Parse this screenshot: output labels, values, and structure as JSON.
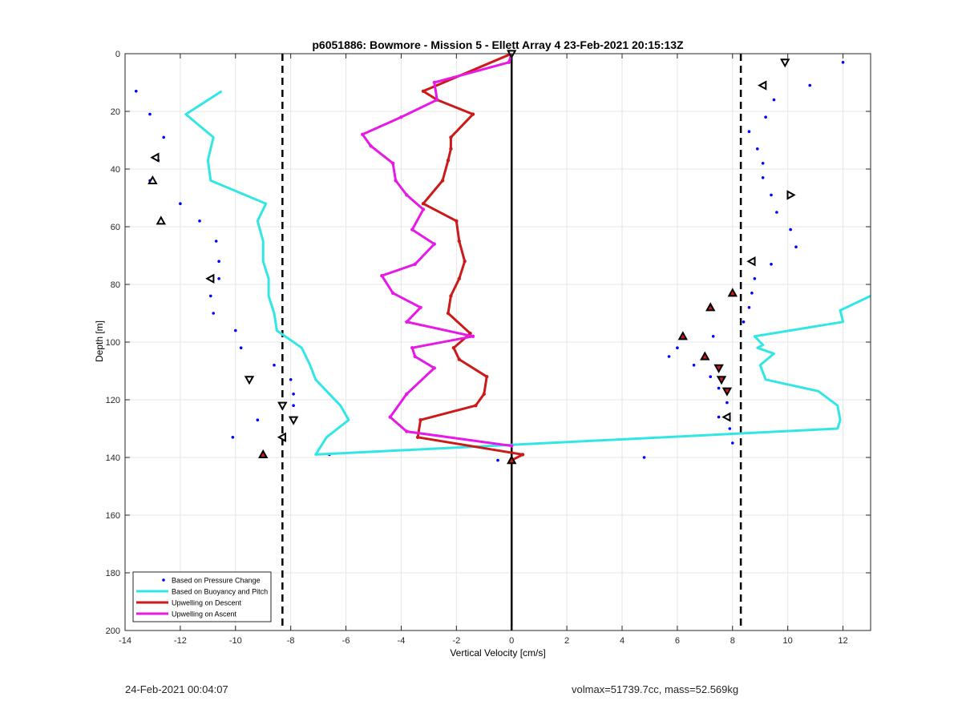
{
  "chart_data": {
    "type": "line",
    "title": "p6051886: Bowmore - Mission 5 - Ellett Array 4 23-Feb-2021 20:15:13Z",
    "xlabel": "Vertical Velocity [cm/s]",
    "ylabel": "Depth [m]",
    "xlim": [
      -14,
      13
    ],
    "ylim": [
      200,
      0
    ],
    "y_reversed": true,
    "grid": true,
    "legend_position": "bottom-left",
    "xticks": [
      -14,
      -12,
      -10,
      -8,
      -6,
      -4,
      -2,
      0,
      2,
      4,
      6,
      8,
      10,
      12
    ],
    "yticks": [
      0,
      20,
      40,
      60,
      80,
      100,
      120,
      140,
      160,
      180,
      200
    ],
    "vlines": [
      {
        "x": -8.3,
        "style": "dashed",
        "color": "#000000"
      },
      {
        "x": 8.3,
        "style": "dashed",
        "color": "#000000"
      },
      {
        "x": 0,
        "style": "solid",
        "color": "#000000"
      }
    ],
    "series": [
      {
        "name": "Based on Pressure Change",
        "kind": "points",
        "color": "#0000ff",
        "points": [
          [
            -13.6,
            13
          ],
          [
            -13.1,
            21
          ],
          [
            -12.6,
            29
          ],
          [
            -12.8,
            37
          ],
          [
            -13.1,
            44
          ],
          [
            -12.0,
            52
          ],
          [
            -11.3,
            58
          ],
          [
            -10.7,
            65
          ],
          [
            -10.6,
            72
          ],
          [
            -10.6,
            78
          ],
          [
            -10.9,
            84
          ],
          [
            -10.8,
            90
          ],
          [
            -10.0,
            96
          ],
          [
            -9.8,
            102
          ],
          [
            -8.6,
            108
          ],
          [
            -9.5,
            113
          ],
          [
            -8.0,
            113
          ],
          [
            -7.9,
            118
          ],
          [
            -7.9,
            122
          ],
          [
            -9.2,
            127
          ],
          [
            -10.1,
            133
          ],
          [
            -6.6,
            139
          ],
          [
            -0.5,
            141
          ],
          [
            4.8,
            140
          ],
          [
            12.0,
            3
          ],
          [
            10.8,
            11
          ],
          [
            9.5,
            16
          ],
          [
            9.2,
            22
          ],
          [
            8.6,
            27
          ],
          [
            8.9,
            33
          ],
          [
            9.1,
            38
          ],
          [
            9.1,
            43
          ],
          [
            9.4,
            49
          ],
          [
            9.6,
            55
          ],
          [
            10.1,
            61
          ],
          [
            10.3,
            67
          ],
          [
            9.4,
            73
          ],
          [
            8.8,
            78
          ],
          [
            8.7,
            83
          ],
          [
            8.6,
            88
          ],
          [
            8.4,
            93
          ],
          [
            7.3,
            98
          ],
          [
            6.0,
            102
          ],
          [
            5.7,
            105
          ],
          [
            6.6,
            108
          ],
          [
            7.2,
            112
          ],
          [
            7.5,
            116
          ],
          [
            7.8,
            121
          ],
          [
            7.5,
            126
          ],
          [
            7.9,
            130
          ],
          [
            8.0,
            135
          ]
        ]
      },
      {
        "name": "Based on Buoyancy and Pitch",
        "kind": "line",
        "color": "#33e6e6",
        "points": [
          [
            -10.5,
            13
          ],
          [
            -11.8,
            21
          ],
          [
            -10.8,
            29
          ],
          [
            -11.0,
            37
          ],
          [
            -10.9,
            44
          ],
          [
            -8.9,
            52
          ],
          [
            -9.2,
            58
          ],
          [
            -9.0,
            65
          ],
          [
            -9.0,
            72
          ],
          [
            -8.8,
            78
          ],
          [
            -8.8,
            84
          ],
          [
            -8.6,
            90
          ],
          [
            -8.5,
            96
          ],
          [
            -7.6,
            102
          ],
          [
            -7.3,
            108
          ],
          [
            -7.1,
            113
          ],
          [
            -6.6,
            118
          ],
          [
            -6.2,
            122
          ],
          [
            -5.9,
            127
          ],
          [
            -6.7,
            133
          ],
          [
            -7.1,
            139
          ],
          [
            11.8,
            130
          ],
          [
            11.9,
            127
          ],
          [
            11.8,
            122
          ],
          [
            11.1,
            117
          ],
          [
            9.2,
            113
          ],
          [
            9.0,
            108
          ],
          [
            9.5,
            104
          ],
          [
            8.9,
            102
          ],
          [
            9.1,
            101
          ],
          [
            8.8,
            98
          ],
          [
            12.0,
            93
          ],
          [
            11.9,
            89
          ],
          [
            13.0,
            84
          ]
        ]
      },
      {
        "name": "Upwelling on Descent",
        "kind": "line",
        "color": "#cc1a1a",
        "points": [
          [
            0,
            0
          ],
          [
            -3.2,
            13
          ],
          [
            -2.7,
            16
          ],
          [
            -1.4,
            21
          ],
          [
            -2.2,
            29
          ],
          [
            -2.2,
            33
          ],
          [
            -2.3,
            37
          ],
          [
            -2.5,
            44
          ],
          [
            -3.2,
            52
          ],
          [
            -2.0,
            58
          ],
          [
            -1.9,
            65
          ],
          [
            -1.7,
            72
          ],
          [
            -1.9,
            78
          ],
          [
            -2.2,
            84
          ],
          [
            -2.3,
            90
          ],
          [
            -1.5,
            97
          ],
          [
            -2.1,
            102
          ],
          [
            -1.9,
            106
          ],
          [
            -0.9,
            112
          ],
          [
            -1.0,
            118
          ],
          [
            -1.3,
            122
          ],
          [
            -3.3,
            127
          ],
          [
            -3.4,
            133
          ],
          [
            0.4,
            139
          ],
          [
            0,
            141
          ]
        ]
      },
      {
        "name": "Upwelling on Ascent",
        "kind": "line",
        "color": "#e619e6",
        "points": [
          [
            0,
            0
          ],
          [
            -0.1,
            3
          ],
          [
            -2.8,
            10
          ],
          [
            -2.7,
            16
          ],
          [
            -4.0,
            22
          ],
          [
            -5.4,
            28
          ],
          [
            -5.1,
            32
          ],
          [
            -4.3,
            38
          ],
          [
            -4.2,
            44
          ],
          [
            -3.8,
            49
          ],
          [
            -3.2,
            54
          ],
          [
            -3.6,
            61
          ],
          [
            -2.8,
            66
          ],
          [
            -3.5,
            73
          ],
          [
            -4.7,
            77
          ],
          [
            -4.3,
            83
          ],
          [
            -3.3,
            88
          ],
          [
            -3.8,
            93
          ],
          [
            -1.4,
            98
          ],
          [
            -3.6,
            102
          ],
          [
            -3.5,
            105
          ],
          [
            -2.8,
            109
          ],
          [
            -3.8,
            118
          ],
          [
            -4.4,
            126
          ],
          [
            -3.8,
            131
          ],
          [
            0,
            136
          ]
        ]
      }
    ],
    "triangle_markers": [
      {
        "x": 0,
        "y": 0,
        "dir": "down",
        "fill": "#ffffff"
      },
      {
        "x": 9.9,
        "y": 3,
        "dir": "down",
        "fill": "#ffffff"
      },
      {
        "x": 9.1,
        "y": 11,
        "dir": "left",
        "fill": "#ffffff"
      },
      {
        "x": -12.9,
        "y": 36,
        "dir": "left",
        "fill": "#ffffff"
      },
      {
        "x": -13.0,
        "y": 44,
        "dir": "up",
        "fill": "#ffffff"
      },
      {
        "x": 10.1,
        "y": 49,
        "dir": "right",
        "fill": "#ffffff"
      },
      {
        "x": -12.7,
        "y": 58,
        "dir": "up",
        "fill": "#ffffff"
      },
      {
        "x": 8.7,
        "y": 72,
        "dir": "left",
        "fill": "#ffffff"
      },
      {
        "x": -10.9,
        "y": 78,
        "dir": "left",
        "fill": "#ffffff"
      },
      {
        "x": 8.0,
        "y": 83,
        "dir": "up",
        "fill": "#cc1a1a"
      },
      {
        "x": 7.2,
        "y": 88,
        "dir": "up",
        "fill": "#cc1a1a"
      },
      {
        "x": 6.2,
        "y": 98,
        "dir": "up",
        "fill": "#cc1a1a"
      },
      {
        "x": 7.0,
        "y": 105,
        "dir": "up",
        "fill": "#cc1a1a"
      },
      {
        "x": 7.5,
        "y": 109,
        "dir": "down",
        "fill": "#cc1a1a"
      },
      {
        "x": 7.6,
        "y": 113,
        "dir": "down",
        "fill": "#cc1a1a"
      },
      {
        "x": 7.8,
        "y": 117,
        "dir": "down",
        "fill": "#cc1a1a"
      },
      {
        "x": -9.5,
        "y": 113,
        "dir": "down",
        "fill": "#ffffff"
      },
      {
        "x": -8.3,
        "y": 122,
        "dir": "down",
        "fill": "#ffffff"
      },
      {
        "x": -7.9,
        "y": 127,
        "dir": "down",
        "fill": "#ffffff"
      },
      {
        "x": 7.8,
        "y": 126,
        "dir": "left",
        "fill": "#ffffff"
      },
      {
        "x": -8.3,
        "y": 133,
        "dir": "left",
        "fill": "#ffffff"
      },
      {
        "x": -9.0,
        "y": 139,
        "dir": "up",
        "fill": "#cc1a1a"
      },
      {
        "x": 0,
        "y": 141,
        "dir": "up",
        "fill": "#cc1a1a"
      }
    ],
    "legend": [
      {
        "label": "Based on Pressure Change",
        "kind": "point",
        "color": "#0000ff"
      },
      {
        "label": "Based on Buoyancy and Pitch",
        "kind": "line",
        "color": "#33e6e6"
      },
      {
        "label": "Upwelling on Descent",
        "kind": "line",
        "color": "#cc1a1a"
      },
      {
        "label": "Upwelling on Ascent",
        "kind": "line",
        "color": "#e619e6"
      }
    ]
  },
  "footer": {
    "timestamp": "24-Feb-2021 00:04:07",
    "stats": "volmax=51739.7cc, mass=52.569kg"
  }
}
